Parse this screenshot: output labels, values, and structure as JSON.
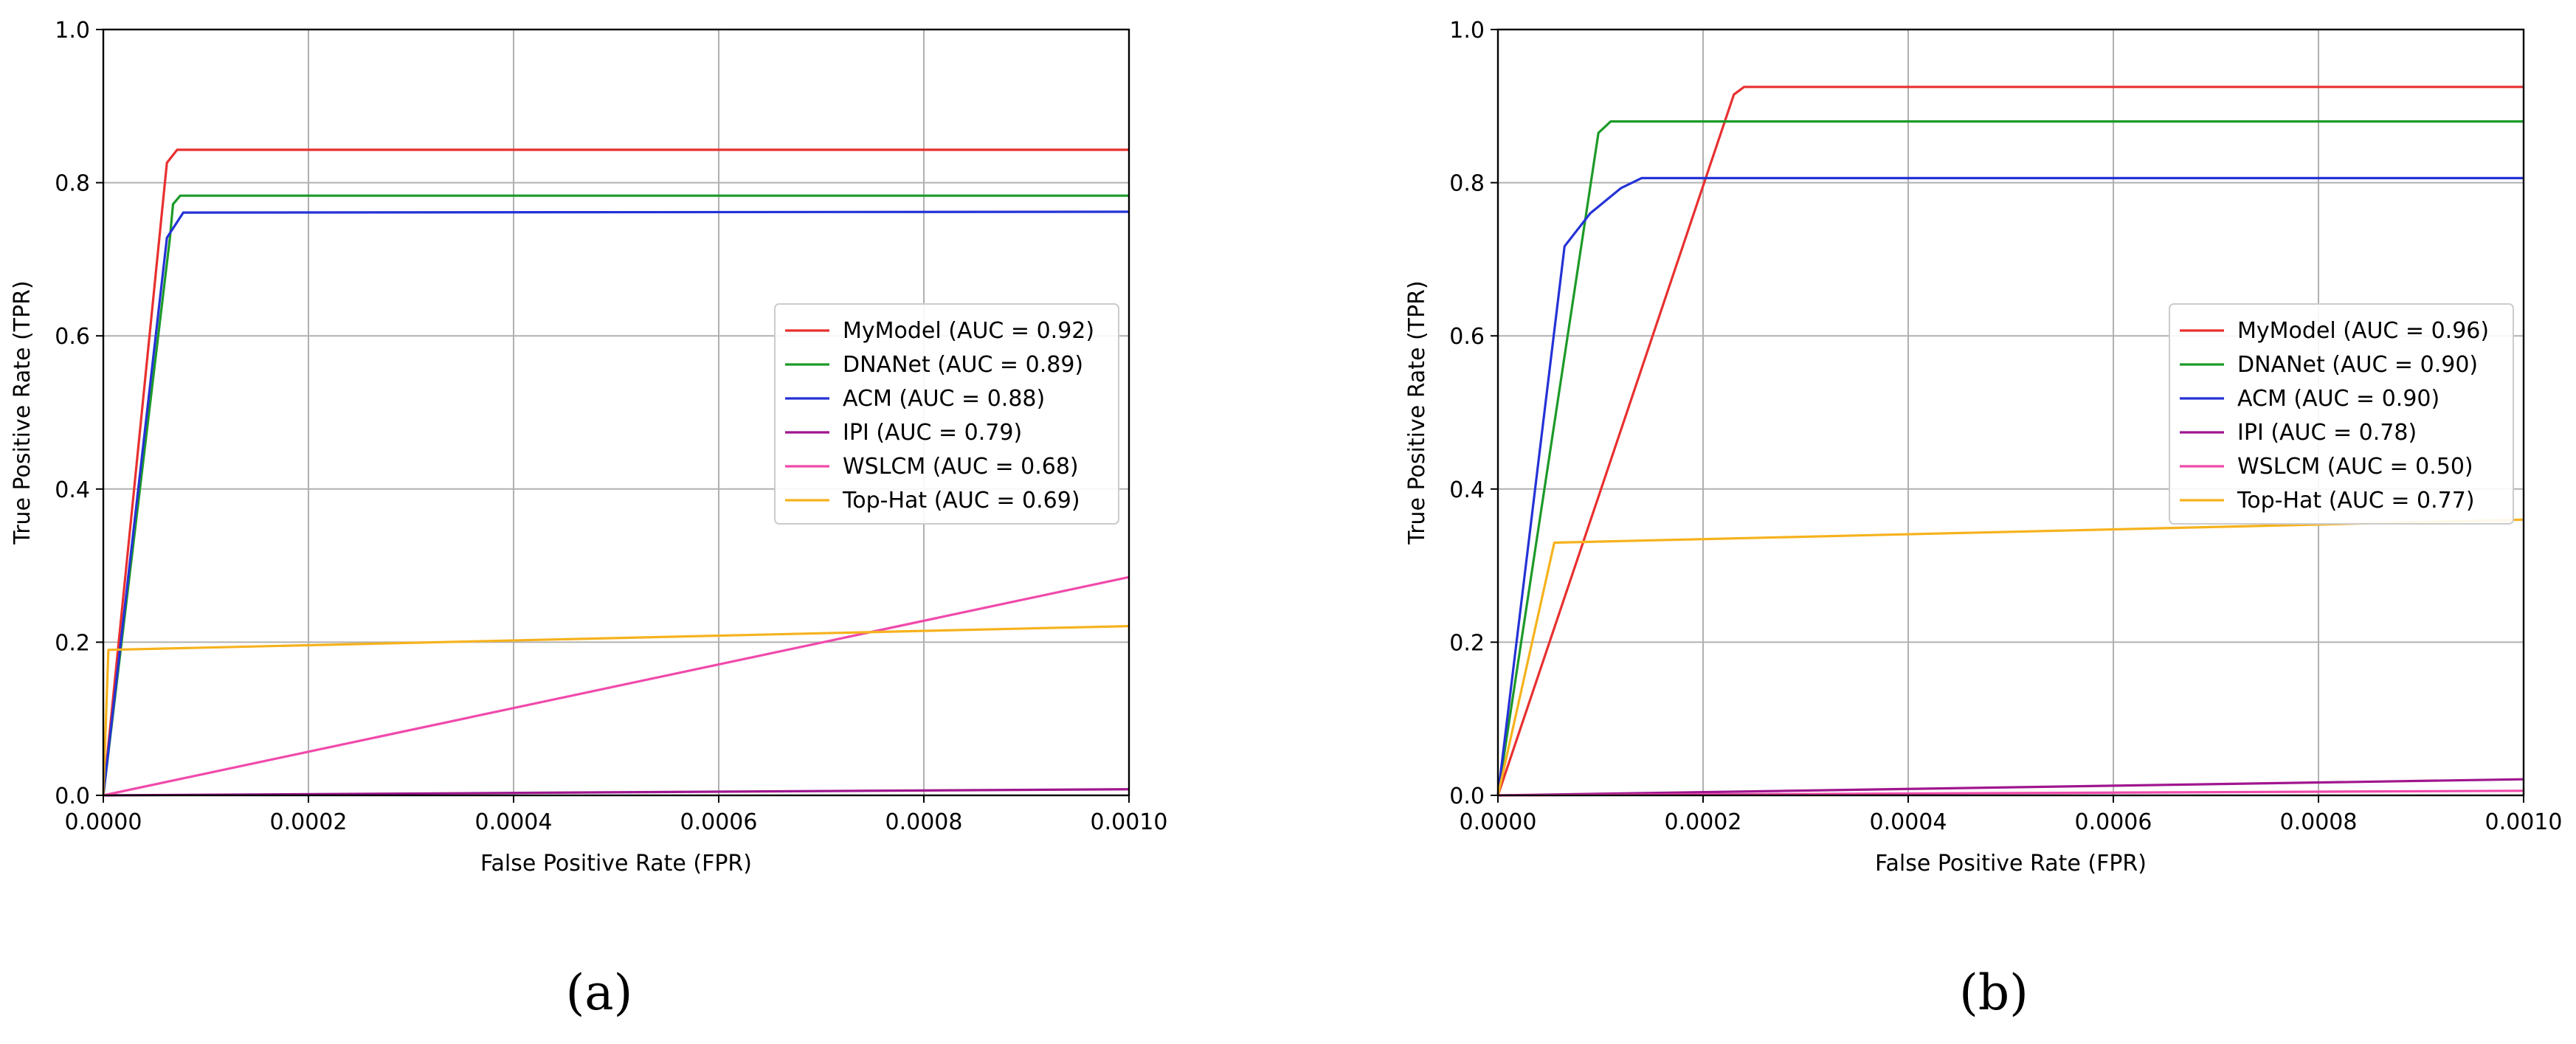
{
  "panels": [
    {
      "label": "(a)",
      "chart_data": {
        "type": "line",
        "xlabel": "False Positive Rate (FPR)",
        "ylabel": "True Positive Rate (TPR)",
        "xlim": [
          0,
          0.001
        ],
        "ylim": [
          0,
          1.0
        ],
        "xticks": [
          "0.0000",
          "0.0002",
          "0.0004",
          "0.0006",
          "0.0008",
          "0.0010"
        ],
        "yticks": [
          "0.0",
          "0.2",
          "0.4",
          "0.6",
          "0.8",
          "1.0"
        ],
        "grid": true,
        "legend_position": "center-right",
        "series": [
          {
            "name": "MyModel (AUC = 0.92)",
            "color": "#e8302f",
            "points": [
              [
                0,
                0.0
              ],
              [
                6.2e-05,
                0.826
              ],
              [
                7.2e-05,
                0.843
              ],
              [
                0.001,
                0.843
              ]
            ]
          },
          {
            "name": "DNANet (AUC = 0.89)",
            "color": "#1c9a28",
            "points": [
              [
                0,
                0.0
              ],
              [
                6.5e-05,
                0.728
              ],
              [
                6.8e-05,
                0.772
              ],
              [
                7.5e-05,
                0.783
              ],
              [
                0.001,
                0.783
              ]
            ]
          },
          {
            "name": "ACM (AUC = 0.88)",
            "color": "#2432d6",
            "points": [
              [
                0,
                0.0
              ],
              [
                6.2e-05,
                0.728
              ],
              [
                7.8e-05,
                0.761
              ],
              [
                0.001,
                0.762
              ]
            ]
          },
          {
            "name": "IPI (AUC = 0.79)",
            "color": "#a0168f",
            "points": [
              [
                0,
                0.0
              ],
              [
                0.001,
                0.008
              ]
            ]
          },
          {
            "name": "WSLCM (AUC = 0.68)",
            "color": "#f04aab",
            "points": [
              [
                0,
                0.0
              ],
              [
                0.001,
                0.285
              ]
            ]
          },
          {
            "name": "Top-Hat (AUC = 0.69)",
            "color": "#f6b21d",
            "points": [
              [
                0,
                0.0
              ],
              [
                5e-06,
                0.19
              ],
              [
                0.001,
                0.221
              ]
            ]
          }
        ]
      }
    },
    {
      "label": "(b)",
      "chart_data": {
        "type": "line",
        "xlabel": "False Positive Rate (FPR)",
        "ylabel": "True Positive Rate (TPR)",
        "xlim": [
          0,
          0.001
        ],
        "ylim": [
          0,
          1.0
        ],
        "xticks": [
          "0.0000",
          "0.0002",
          "0.0004",
          "0.0006",
          "0.0008",
          "0.0010"
        ],
        "yticks": [
          "0.0",
          "0.2",
          "0.4",
          "0.6",
          "0.8",
          "1.0"
        ],
        "grid": true,
        "legend_position": "center-right",
        "series": [
          {
            "name": "MyModel (AUC = 0.96)",
            "color": "#e8302f",
            "points": [
              [
                0,
                0.0
              ],
              [
                0.00023,
                0.915
              ],
              [
                0.00024,
                0.925
              ],
              [
                0.001,
                0.925
              ]
            ]
          },
          {
            "name": "DNANet (AUC = 0.90)",
            "color": "#1c9a28",
            "points": [
              [
                0,
                0.0
              ],
              [
                9.8e-05,
                0.865
              ],
              [
                0.00011,
                0.88
              ],
              [
                0.001,
                0.88
              ]
            ]
          },
          {
            "name": "ACM (AUC = 0.90)",
            "color": "#2432d6",
            "points": [
              [
                0,
                0.0
              ],
              [
                6.5e-05,
                0.717
              ],
              [
                9e-05,
                0.76
              ],
              [
                0.00012,
                0.793
              ],
              [
                0.00014,
                0.806
              ],
              [
                0.001,
                0.806
              ]
            ]
          },
          {
            "name": "IPI (AUC = 0.78)",
            "color": "#a0168f",
            "points": [
              [
                0,
                0.0
              ],
              [
                0.001,
                0.021
              ]
            ]
          },
          {
            "name": "WSLCM (AUC = 0.50)",
            "color": "#f04aab",
            "points": [
              [
                0,
                0.0
              ],
              [
                0.001,
                0.006
              ]
            ]
          },
          {
            "name": "Top-Hat (AUC = 0.77)",
            "color": "#f6b21d",
            "points": [
              [
                0,
                0.0
              ],
              [
                5.5e-05,
                0.33
              ],
              [
                0.001,
                0.36
              ]
            ]
          }
        ]
      }
    }
  ]
}
